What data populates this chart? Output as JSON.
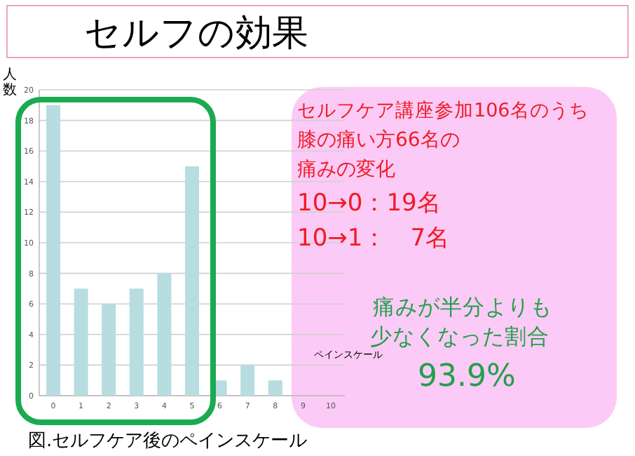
{
  "chart_data": {
    "type": "bar",
    "title": "セルフの効果",
    "ylabel": "人数",
    "xlabel": "ペインスケール",
    "categories": [
      "0",
      "1",
      "2",
      "3",
      "4",
      "5",
      "6",
      "7",
      "8",
      "9",
      "10"
    ],
    "values": [
      19,
      7,
      6,
      7,
      8,
      15,
      1,
      2,
      1,
      0,
      0
    ],
    "color": "#b7dde0",
    "ylim": [
      0,
      20
    ],
    "yticks": [
      0,
      2,
      4,
      6,
      8,
      10,
      12,
      14,
      16,
      18,
      20
    ],
    "grid": "y",
    "annotations": [
      "セルフケア講座参加106名のうち",
      "膝の痛い方66名の",
      "痛みの変化",
      "10→0：19名",
      "10→1：　7名",
      "痛みが半分よりも",
      "少なくなった割合",
      "93.9%",
      "図.セルフケア後のペインスケール"
    ]
  }
}
